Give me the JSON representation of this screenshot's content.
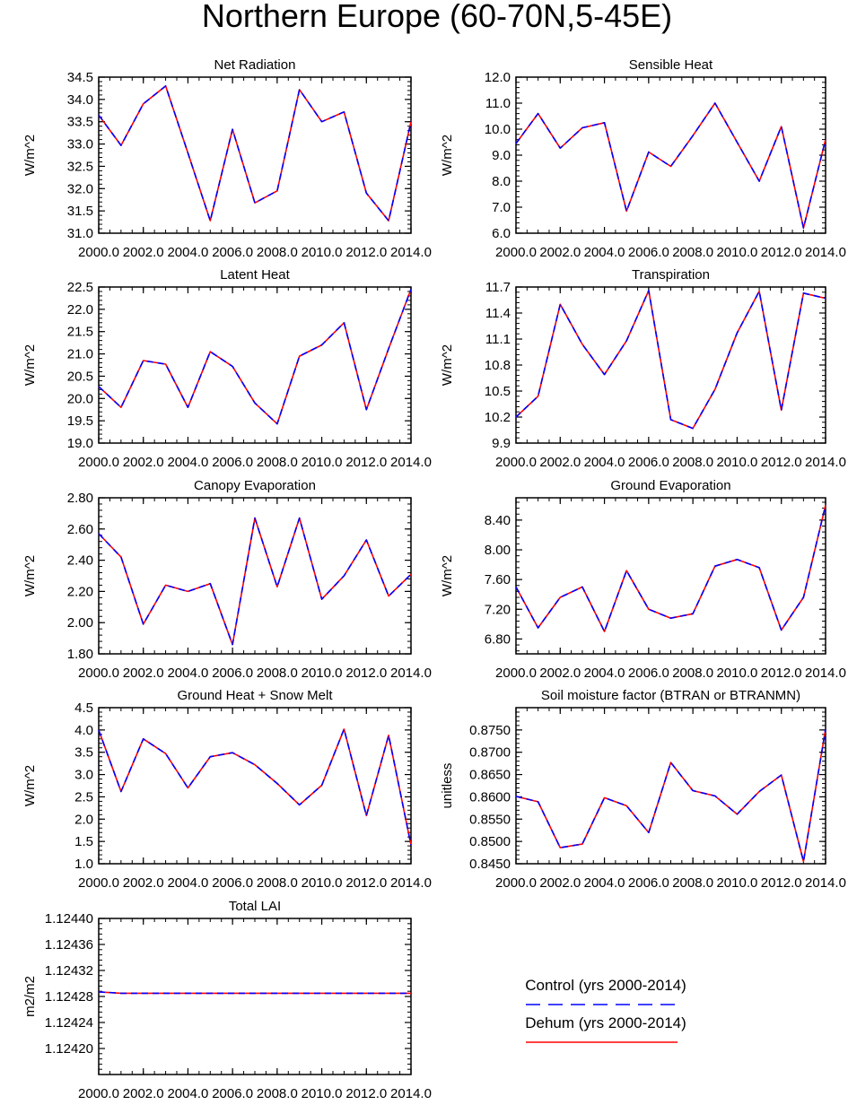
{
  "figure_title": "Northern Europe (60-70N,5-45E)",
  "legend": {
    "items": [
      {
        "label": "Control (yrs 2000-2014)",
        "color": "#0000ff",
        "dash": "dashed"
      },
      {
        "label": "Dehum (yrs 2000-2014)",
        "color": "#ff0000",
        "dash": "solid"
      }
    ]
  },
  "chart_data": [
    {
      "type": "line",
      "title": "Net Radiation",
      "ylabel": "W/m^2",
      "xlabel": "",
      "xlim": [
        2000,
        2014
      ],
      "ylim": [
        31.0,
        34.5
      ],
      "yticks": [
        "31.0",
        "31.5",
        "32.0",
        "32.5",
        "33.0",
        "33.5",
        "34.0",
        "34.5"
      ],
      "xticks": [
        "2000.0",
        "2002.0",
        "2004.0",
        "2006.0",
        "2008.0",
        "2010.0",
        "2012.0",
        "2014.0"
      ],
      "x": [
        2000,
        2001,
        2002,
        2003,
        2004,
        2005,
        2006,
        2007,
        2008,
        2009,
        2010,
        2011,
        2012,
        2013,
        2014
      ],
      "series": [
        {
          "name": "Control (yrs 2000-2014)",
          "values": [
            33.65,
            32.97,
            33.9,
            34.3,
            32.8,
            31.28,
            33.33,
            31.68,
            31.95,
            34.22,
            33.5,
            33.72,
            31.9,
            31.28,
            33.5
          ]
        },
        {
          "name": "Dehum (yrs 2000-2014)",
          "values": [
            33.65,
            32.97,
            33.9,
            34.3,
            32.8,
            31.28,
            33.33,
            31.68,
            31.95,
            34.22,
            33.5,
            33.72,
            31.9,
            31.28,
            33.5
          ]
        }
      ]
    },
    {
      "type": "line",
      "title": "Sensible Heat",
      "ylabel": "W/m^2",
      "xlabel": "",
      "xlim": [
        2000,
        2014
      ],
      "ylim": [
        6.0,
        12.0
      ],
      "yticks": [
        "6.0",
        "7.0",
        "8.0",
        "9.0",
        "10.0",
        "11.0",
        "12.0"
      ],
      "xticks": [
        "2000.0",
        "2002.0",
        "2004.0",
        "2006.0",
        "2008.0",
        "2010.0",
        "2012.0",
        "2014.0"
      ],
      "x": [
        2000,
        2001,
        2002,
        2003,
        2004,
        2005,
        2006,
        2007,
        2008,
        2009,
        2010,
        2011,
        2012,
        2013,
        2014
      ],
      "series": [
        {
          "name": "Control (yrs 2000-2014)",
          "values": [
            9.45,
            10.6,
            9.27,
            10.05,
            10.25,
            6.85,
            9.12,
            8.57,
            9.75,
            11.0,
            9.5,
            8.0,
            10.1,
            6.2,
            9.6
          ]
        },
        {
          "name": "Dehum (yrs 2000-2014)",
          "values": [
            9.45,
            10.6,
            9.27,
            10.05,
            10.25,
            6.85,
            9.12,
            8.57,
            9.75,
            11.0,
            9.5,
            8.0,
            10.1,
            6.2,
            9.6
          ]
        }
      ]
    },
    {
      "type": "line",
      "title": "Latent Heat",
      "ylabel": "W/m^2",
      "xlabel": "",
      "xlim": [
        2000,
        2014
      ],
      "ylim": [
        19.0,
        22.5
      ],
      "yticks": [
        "19.0",
        "19.5",
        "20.0",
        "20.5",
        "21.0",
        "21.5",
        "22.0",
        "22.5"
      ],
      "xticks": [
        "2000.0",
        "2002.0",
        "2004.0",
        "2006.0",
        "2008.0",
        "2010.0",
        "2012.0",
        "2014.0"
      ],
      "x": [
        2000,
        2001,
        2002,
        2003,
        2004,
        2005,
        2006,
        2007,
        2008,
        2009,
        2010,
        2011,
        2012,
        2013,
        2014
      ],
      "series": [
        {
          "name": "Control (yrs 2000-2014)",
          "values": [
            20.27,
            19.8,
            20.85,
            20.77,
            19.8,
            21.05,
            20.72,
            19.9,
            19.43,
            20.95,
            21.2,
            21.7,
            19.75,
            21.12,
            22.45
          ]
        },
        {
          "name": "Dehum (yrs 2000-2014)",
          "values": [
            20.27,
            19.8,
            20.85,
            20.77,
            19.8,
            21.05,
            20.72,
            19.9,
            19.43,
            20.95,
            21.2,
            21.7,
            19.75,
            21.12,
            22.45
          ]
        }
      ]
    },
    {
      "type": "line",
      "title": "Transpiration",
      "ylabel": "W/m^2",
      "xlabel": "",
      "xlim": [
        2000,
        2014
      ],
      "ylim": [
        9.9,
        11.7
      ],
      "yticks": [
        "9.9",
        "10.2",
        "10.5",
        "10.8",
        "11.1",
        "11.4",
        "11.7"
      ],
      "xticks": [
        "2000.0",
        "2002.0",
        "2004.0",
        "2006.0",
        "2008.0",
        "2010.0",
        "2012.0",
        "2014.0"
      ],
      "x": [
        2000,
        2001,
        2002,
        2003,
        2004,
        2005,
        2006,
        2007,
        2008,
        2009,
        2010,
        2011,
        2012,
        2013,
        2014
      ],
      "series": [
        {
          "name": "Control (yrs 2000-2014)",
          "values": [
            10.2,
            10.44,
            11.5,
            11.04,
            10.69,
            11.08,
            11.66,
            10.17,
            10.07,
            10.52,
            11.17,
            11.65,
            10.28,
            11.63,
            11.57
          ]
        },
        {
          "name": "Dehum (yrs 2000-2014)",
          "values": [
            10.2,
            10.44,
            11.5,
            11.04,
            10.69,
            11.08,
            11.66,
            10.17,
            10.07,
            10.52,
            11.17,
            11.65,
            10.28,
            11.63,
            11.57
          ]
        }
      ]
    },
    {
      "type": "line",
      "title": "Canopy Evaporation",
      "ylabel": "W/m^2",
      "xlabel": "",
      "xlim": [
        2000,
        2014
      ],
      "ylim": [
        1.8,
        2.8
      ],
      "yticks": [
        "1.80",
        "2.00",
        "2.20",
        "2.40",
        "2.60",
        "2.80"
      ],
      "xticks": [
        "2000.0",
        "2002.0",
        "2004.0",
        "2006.0",
        "2008.0",
        "2010.0",
        "2012.0",
        "2014.0"
      ],
      "x": [
        2000,
        2001,
        2002,
        2003,
        2004,
        2005,
        2006,
        2007,
        2008,
        2009,
        2010,
        2011,
        2012,
        2013,
        2014
      ],
      "series": [
        {
          "name": "Control (yrs 2000-2014)",
          "values": [
            2.57,
            2.42,
            1.99,
            2.24,
            2.2,
            2.25,
            1.86,
            2.67,
            2.23,
            2.67,
            2.15,
            2.3,
            2.53,
            2.17,
            2.31
          ]
        },
        {
          "name": "Dehum (yrs 2000-2014)",
          "values": [
            2.57,
            2.42,
            1.99,
            2.24,
            2.2,
            2.25,
            1.86,
            2.67,
            2.23,
            2.67,
            2.15,
            2.3,
            2.53,
            2.17,
            2.31
          ]
        }
      ]
    },
    {
      "type": "line",
      "title": "Ground Evaporation",
      "ylabel": "W/m^2",
      "xlabel": "",
      "xlim": [
        2000,
        2014
      ],
      "ylim": [
        6.6,
        8.7
      ],
      "yticks": [
        "6.80",
        "7.20",
        "7.60",
        "8.00",
        "8.40"
      ],
      "xticks": [
        "2000.0",
        "2002.0",
        "2004.0",
        "2006.0",
        "2008.0",
        "2010.0",
        "2012.0",
        "2014.0"
      ],
      "x": [
        2000,
        2001,
        2002,
        2003,
        2004,
        2005,
        2006,
        2007,
        2008,
        2009,
        2010,
        2011,
        2012,
        2013,
        2014
      ],
      "series": [
        {
          "name": "Control (yrs 2000-2014)",
          "values": [
            7.5,
            6.95,
            7.36,
            7.5,
            6.9,
            7.72,
            7.2,
            7.08,
            7.14,
            7.78,
            7.87,
            7.76,
            6.92,
            7.36,
            8.6
          ]
        },
        {
          "name": "Dehum (yrs 2000-2014)",
          "values": [
            7.5,
            6.95,
            7.36,
            7.5,
            6.9,
            7.72,
            7.2,
            7.08,
            7.14,
            7.78,
            7.87,
            7.76,
            6.92,
            7.36,
            8.6
          ]
        }
      ]
    },
    {
      "type": "line",
      "title": "Ground Heat + Snow Melt",
      "ylabel": "W/m^2",
      "xlabel": "",
      "xlim": [
        2000,
        2014
      ],
      "ylim": [
        1.0,
        4.5
      ],
      "yticks": [
        "1.0",
        "1.5",
        "2.0",
        "2.5",
        "3.0",
        "3.5",
        "4.0",
        "4.5"
      ],
      "xticks": [
        "2000.0",
        "2002.0",
        "2004.0",
        "2006.0",
        "2008.0",
        "2010.0",
        "2012.0",
        "2014.0"
      ],
      "x": [
        2000,
        2001,
        2002,
        2003,
        2004,
        2005,
        2006,
        2007,
        2008,
        2009,
        2010,
        2011,
        2012,
        2013,
        2014
      ],
      "series": [
        {
          "name": "Control (yrs 2000-2014)",
          "values": [
            4.0,
            2.62,
            3.8,
            3.47,
            2.7,
            3.4,
            3.49,
            3.22,
            2.8,
            2.32,
            2.76,
            4.02,
            2.08,
            3.88,
            1.42
          ]
        },
        {
          "name": "Dehum (yrs 2000-2014)",
          "values": [
            4.0,
            2.62,
            3.8,
            3.47,
            2.7,
            3.4,
            3.49,
            3.22,
            2.8,
            2.32,
            2.76,
            4.02,
            2.08,
            3.88,
            1.42
          ]
        }
      ]
    },
    {
      "type": "line",
      "title": "Soil moisture factor (BTRAN or BTRANMN)",
      "ylabel": "unitless",
      "xlabel": "",
      "xlim": [
        2000,
        2014
      ],
      "ylim": [
        0.845,
        0.88
      ],
      "yticks": [
        "0.8450",
        "0.8500",
        "0.8550",
        "0.8600",
        "0.8650",
        "0.8700",
        "0.8750"
      ],
      "xticks": [
        "2000.0",
        "2002.0",
        "2004.0",
        "2006.0",
        "2008.0",
        "2010.0",
        "2012.0",
        "2014.0"
      ],
      "x": [
        2000,
        2001,
        2002,
        2003,
        2004,
        2005,
        2006,
        2007,
        2008,
        2009,
        2010,
        2011,
        2012,
        2013,
        2014
      ],
      "series": [
        {
          "name": "Control (yrs 2000-2014)",
          "values": [
            0.8601,
            0.8589,
            0.8486,
            0.8494,
            0.8598,
            0.858,
            0.852,
            0.8677,
            0.8614,
            0.8602,
            0.8561,
            0.8612,
            0.8649,
            0.8455,
            0.8752
          ]
        },
        {
          "name": "Dehum (yrs 2000-2014)",
          "values": [
            0.8601,
            0.8589,
            0.8486,
            0.8494,
            0.8598,
            0.858,
            0.852,
            0.8677,
            0.8614,
            0.8602,
            0.8561,
            0.8612,
            0.8649,
            0.8455,
            0.8752
          ]
        }
      ]
    },
    {
      "type": "line",
      "title": "Total LAI",
      "ylabel": "m2/m2",
      "xlabel": "",
      "xlim": [
        2000,
        2014
      ],
      "ylim": [
        1.12416,
        1.1244
      ],
      "yticks": [
        "1.12420",
        "1.12424",
        "1.12428",
        "1.12432",
        "1.12436",
        "1.12440"
      ],
      "xticks": [
        "2000.0",
        "2002.0",
        "2004.0",
        "2006.0",
        "2008.0",
        "2010.0",
        "2012.0",
        "2014.0"
      ],
      "x": [
        2000,
        2001,
        2002,
        2003,
        2004,
        2005,
        2006,
        2007,
        2008,
        2009,
        2010,
        2011,
        2012,
        2013,
        2014
      ],
      "series": [
        {
          "name": "Control (yrs 2000-2014)",
          "values": [
            1.124287,
            1.124285,
            1.124285,
            1.124285,
            1.124285,
            1.124285,
            1.124285,
            1.124285,
            1.124285,
            1.124285,
            1.124285,
            1.124285,
            1.124285,
            1.124285,
            1.124285
          ]
        },
        {
          "name": "Dehum (yrs 2000-2014)",
          "values": [
            1.124287,
            1.124285,
            1.124285,
            1.124285,
            1.124285,
            1.124285,
            1.124285,
            1.124285,
            1.124285,
            1.124285,
            1.124285,
            1.124285,
            1.124285,
            1.124285,
            1.124285
          ]
        }
      ]
    }
  ]
}
